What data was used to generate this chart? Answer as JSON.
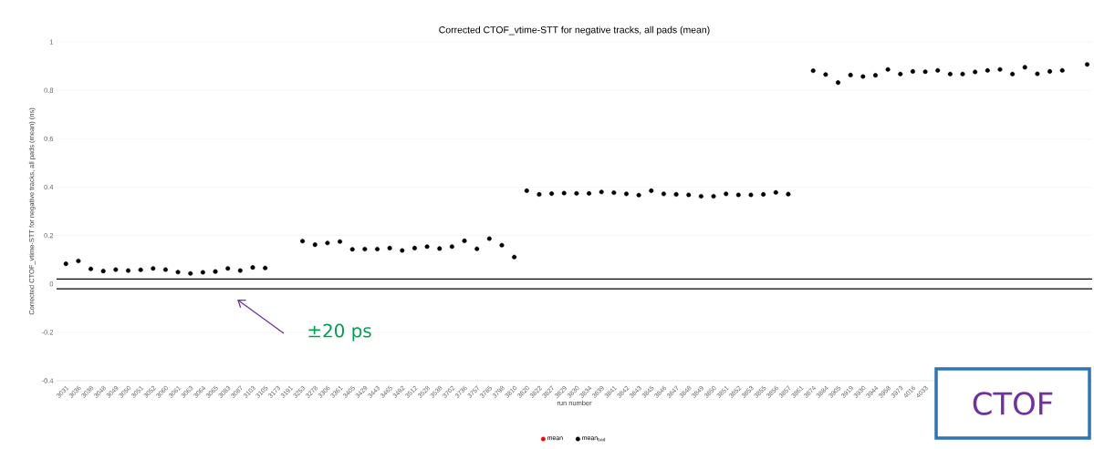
{
  "chart_data": {
    "type": "scatter",
    "title": "Corrected CTOF_vtime-STT for negative tracks, all pads (mean)",
    "ylabel": "Corrected CTOF_vtime-STT for negative tracks, all pads (mean) (ns)",
    "xlabel": "run number",
    "categories": [
      "3031",
      "3036",
      "3038",
      "3048",
      "3049",
      "3050",
      "3051",
      "3052",
      "3060",
      "3061",
      "3063",
      "3064",
      "3065",
      "3083",
      "3087",
      "3103",
      "3105",
      "3173",
      "3191",
      "3253",
      "3278",
      "3306",
      "3361",
      "3405",
      "3429",
      "3443",
      "3465",
      "3492",
      "3512",
      "3528",
      "3538",
      "3702",
      "3736",
      "3757",
      "3785",
      "3798",
      "3810",
      "3820",
      "3822",
      "3827",
      "3829",
      "3830",
      "3834",
      "3839",
      "3841",
      "3842",
      "3843",
      "3845",
      "3846",
      "3847",
      "3848",
      "3849",
      "3850",
      "3851",
      "3852",
      "3853",
      "3855",
      "3856",
      "3857",
      "3861",
      "3874",
      "3884",
      "3905",
      "3919",
      "3930",
      "3944",
      "3958",
      "3973",
      "4016",
      "4033",
      null,
      null,
      null,
      null,
      null,
      null,
      null,
      null,
      null,
      null,
      null,
      null,
      null
    ],
    "series": [
      {
        "name": "mean",
        "color": "#ff0000",
        "values": [
          null,
          null,
          null,
          null,
          null,
          null,
          null,
          null,
          null,
          null,
          null,
          null,
          null,
          null,
          null,
          null,
          null,
          null,
          null,
          null,
          null,
          null,
          null,
          null,
          null,
          null,
          null,
          null,
          null,
          null,
          null,
          null,
          null,
          null,
          null,
          null,
          null,
          null,
          null,
          null,
          null,
          null,
          null,
          null,
          null,
          null,
          null,
          null,
          null,
          null,
          null,
          null,
          null,
          null,
          null,
          null,
          null,
          null,
          null,
          null,
          null,
          null,
          null,
          null,
          null,
          null,
          null,
          null,
          null,
          null,
          null,
          null,
          null,
          null,
          null,
          null,
          null,
          null,
          null,
          null,
          null,
          null,
          null
        ]
      },
      {
        "name": "mean$_{bad}$",
        "color": "#000000",
        "values": [
          0.083,
          0.095,
          0.062,
          0.053,
          0.059,
          0.055,
          0.058,
          0.064,
          0.059,
          0.049,
          0.043,
          0.048,
          0.051,
          0.064,
          0.055,
          0.068,
          0.066,
          null,
          null,
          0.177,
          0.162,
          0.169,
          0.175,
          0.143,
          0.144,
          0.144,
          0.148,
          0.138,
          0.148,
          0.154,
          0.146,
          0.154,
          0.178,
          0.145,
          0.187,
          0.16,
          0.111,
          0.385,
          0.37,
          0.373,
          0.375,
          0.374,
          0.374,
          0.38,
          0.377,
          0.372,
          0.367,
          0.385,
          0.372,
          0.37,
          0.368,
          0.362,
          0.362,
          0.372,
          0.368,
          0.368,
          0.37,
          0.378,
          0.371,
          null,
          0.881,
          0.865,
          0.832,
          0.863,
          0.857,
          0.862,
          0.886,
          0.867,
          0.878,
          0.877,
          0.882,
          0.867,
          0.867,
          0.876,
          0.882,
          0.886,
          0.867,
          0.895,
          0.868,
          0.878,
          0.882,
          null,
          0.907
        ]
      }
    ],
    "ylim": [
      -0.4,
      1
    ],
    "yticks": [
      -0.4,
      -0.2,
      0,
      0.2,
      0.4,
      0.6,
      0.8,
      1
    ],
    "grid": "y",
    "legend": "bottom",
    "ref_lines": [
      {
        "axis": "y",
        "value": 0.02,
        "color": "#000000"
      },
      {
        "axis": "y",
        "value": -0.02,
        "color": "#000000"
      }
    ],
    "annotations": [
      "±20 ps",
      "CTOF"
    ]
  }
}
